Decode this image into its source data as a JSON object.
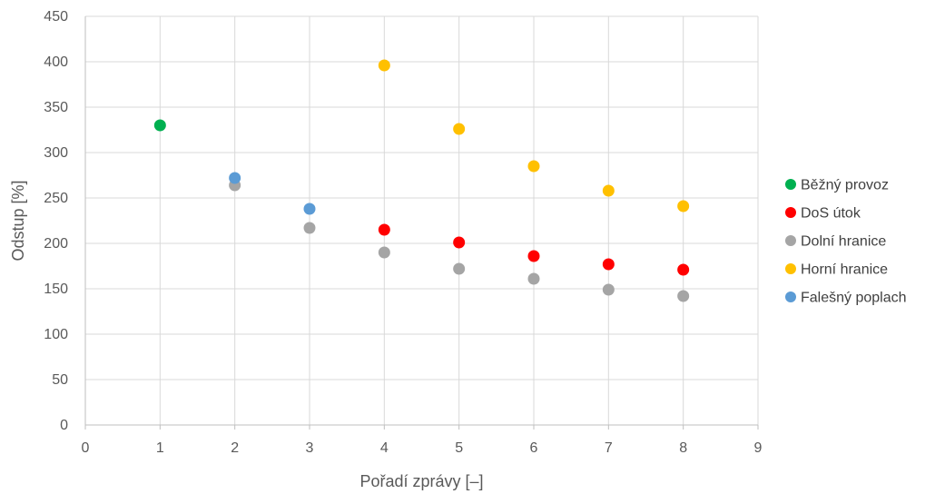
{
  "chart_data": {
    "type": "scatter",
    "title": "",
    "xlabel": "Pořadí zprávy [–]",
    "ylabel": "Odstup [%]",
    "xlim": [
      0,
      9
    ],
    "ylim": [
      0,
      450
    ],
    "x_ticks": [
      "0",
      "1",
      "2",
      "3",
      "4",
      "5",
      "6",
      "7",
      "8",
      "9"
    ],
    "y_ticks": [
      "0",
      "50",
      "100",
      "150",
      "200",
      "250",
      "300",
      "350",
      "400",
      "450"
    ],
    "grid": true,
    "legend_position": "right",
    "series": [
      {
        "name": "Běžný provoz",
        "color": "#00b050",
        "points": [
          {
            "x": 1,
            "y": 330
          }
        ]
      },
      {
        "name": "DoS útok",
        "color": "#ff0000",
        "points": [
          {
            "x": 4,
            "y": 215
          },
          {
            "x": 5,
            "y": 201
          },
          {
            "x": 6,
            "y": 186
          },
          {
            "x": 7,
            "y": 177
          },
          {
            "x": 8,
            "y": 171
          }
        ]
      },
      {
        "name": "Dolní hranice",
        "color": "#a5a5a5",
        "points": [
          {
            "x": 2,
            "y": 264
          },
          {
            "x": 3,
            "y": 217
          },
          {
            "x": 4,
            "y": 190
          },
          {
            "x": 5,
            "y": 172
          },
          {
            "x": 6,
            "y": 161
          },
          {
            "x": 7,
            "y": 149
          },
          {
            "x": 8,
            "y": 142
          }
        ]
      },
      {
        "name": "Horní hranice",
        "color": "#ffc000",
        "points": [
          {
            "x": 4,
            "y": 396
          },
          {
            "x": 5,
            "y": 326
          },
          {
            "x": 6,
            "y": 285
          },
          {
            "x": 7,
            "y": 258
          },
          {
            "x": 8,
            "y": 241
          }
        ]
      },
      {
        "name": "Falešný poplach",
        "color": "#5b9bd5",
        "points": [
          {
            "x": 2,
            "y": 272
          },
          {
            "x": 3,
            "y": 238
          }
        ]
      }
    ]
  }
}
